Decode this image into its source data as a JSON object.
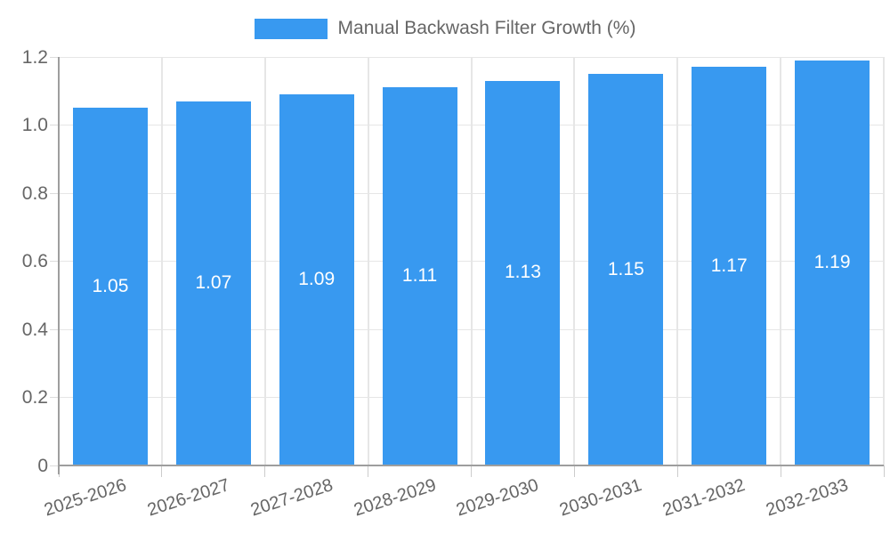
{
  "chart_data": {
    "type": "bar",
    "title": "",
    "xlabel": "",
    "ylabel": "",
    "legend": {
      "label": "Manual Backwash Filter Growth (%)",
      "position": "top"
    },
    "categories": [
      "2025-2026",
      "2026-2027",
      "2027-2028",
      "2028-2029",
      "2029-2030",
      "2030-2031",
      "2031-2032",
      "2032-2033"
    ],
    "series": [
      {
        "name": "Manual Backwash Filter Growth (%)",
        "values": [
          1.05,
          1.07,
          1.09,
          1.11,
          1.13,
          1.15,
          1.17,
          1.19
        ],
        "value_labels": [
          "1.05",
          "1.07",
          "1.09",
          "1.11",
          "1.13",
          "1.15",
          "1.17",
          "1.19"
        ]
      }
    ],
    "ylim": [
      0,
      1.2
    ],
    "yticks": {
      "values": [
        0,
        0.2,
        0.4,
        0.6,
        0.8,
        1.0,
        1.2
      ],
      "labels": [
        "0",
        "0.2",
        "0.4",
        "0.6",
        "0.8",
        "1.0",
        "1.2"
      ]
    },
    "grid": true,
    "legend_position": "top",
    "colors": {
      "bar": "#3899f0",
      "value_label": "#ffffff",
      "axis_text": "#666666",
      "grid_line": "#e6e6e6",
      "axis_line": "#9e9e9e",
      "tick_mark": "#cccccc",
      "background": "#ffffff"
    }
  }
}
